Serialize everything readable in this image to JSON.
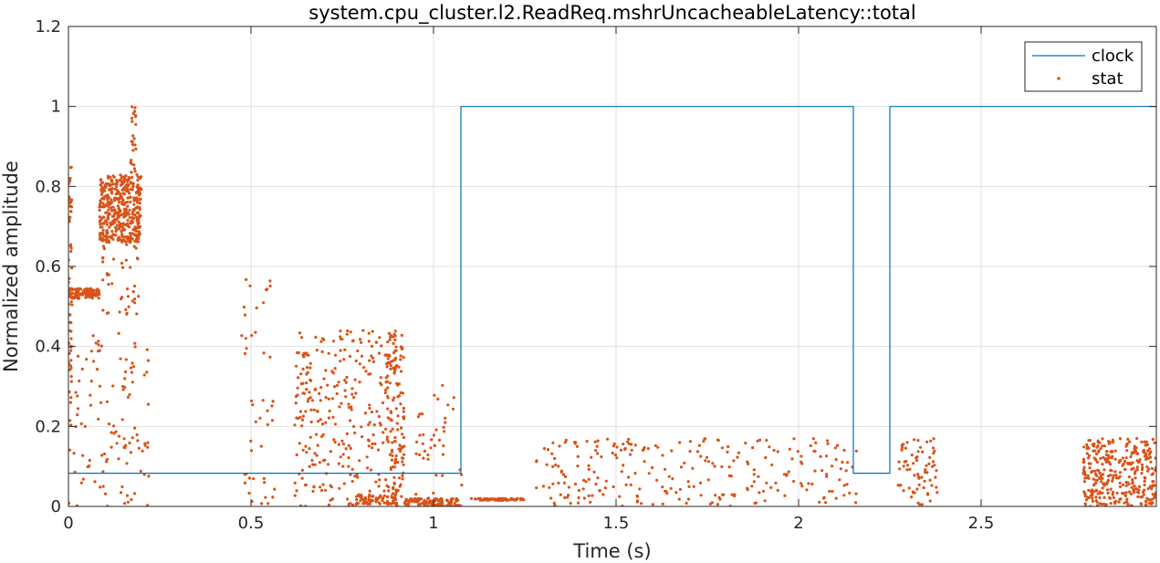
{
  "chart_data": {
    "type": "line",
    "title": "system.cpu_cluster.l2.ReadReq.mshrUncacheableLatency::total",
    "xlabel": "Time (s)",
    "ylabel": "Normalized amplitude",
    "xlim": [
      0,
      2.98
    ],
    "ylim": [
      0,
      1.2
    ],
    "xticks": [
      0,
      0.5,
      1,
      1.5,
      2,
      2.5
    ],
    "xtick_labels": [
      "0",
      "0.5",
      "1",
      "1.5",
      "2",
      "2.5"
    ],
    "yticks": [
      0,
      0.2,
      0.4,
      0.6,
      0.8,
      1,
      1.2
    ],
    "ytick_labels": [
      "0",
      "0.2",
      "0.4",
      "0.6",
      "0.8",
      "1",
      "1.2"
    ],
    "grid": true,
    "legend_position": "top-right",
    "colors": {
      "clock": "#0072BD",
      "stat": "#D95319",
      "grid": "#DFDFDF",
      "axes": "#262626"
    },
    "series": [
      {
        "name": "clock",
        "style": "line",
        "x": [
          0,
          1.075,
          1.075,
          2.15,
          2.15,
          2.25,
          2.25,
          2.98
        ],
        "y": [
          0.083,
          0.083,
          1.0,
          1.0,
          0.083,
          0.083,
          1.0,
          1.0
        ]
      },
      {
        "name": "stat",
        "style": "markers",
        "clusters": [
          {
            "x": [
              0.0,
              0.01
            ],
            "y": [
              0.2,
              0.85
            ],
            "n": 60
          },
          {
            "x": [
              0.0,
              0.085
            ],
            "y": [
              0.52,
              0.545
            ],
            "n": 110
          },
          {
            "x": [
              0.085,
              0.2
            ],
            "y": [
              0.66,
              0.83
            ],
            "n": 420
          },
          {
            "x": [
              0.09,
              0.2
            ],
            "y": [
              0.48,
              0.66
            ],
            "n": 40
          },
          {
            "x": [
              0.17,
              0.185
            ],
            "y": [
              0.83,
              1.0
            ],
            "n": 25
          },
          {
            "x": [
              0.0,
              0.22
            ],
            "y": [
              0.0,
              0.45
            ],
            "n": 110
          },
          {
            "x": [
              0.47,
              0.57
            ],
            "y": [
              0.0,
              0.57
            ],
            "n": 45
          },
          {
            "x": [
              0.62,
              0.9
            ],
            "y": [
              0.0,
              0.44
            ],
            "n": 300
          },
          {
            "x": [
              0.78,
              0.9
            ],
            "y": [
              0.005,
              0.03
            ],
            "n": 60
          },
          {
            "x": [
              0.87,
              0.92
            ],
            "y": [
              0.0,
              0.44
            ],
            "n": 110
          },
          {
            "x": [
              0.92,
              1.07
            ],
            "y": [
              0.0,
              0.02
            ],
            "n": 120
          },
          {
            "x": [
              0.95,
              1.08
            ],
            "y": [
              0.0,
              0.31
            ],
            "n": 45
          },
          {
            "x": [
              1.1,
              1.25
            ],
            "y": [
              0.015,
              0.02
            ],
            "n": 70
          },
          {
            "x": [
              1.28,
              2.16
            ],
            "y": [
              0.0,
              0.17
            ],
            "n": 260
          },
          {
            "x": [
              2.27,
              2.38
            ],
            "y": [
              0.0,
              0.17
            ],
            "n": 70
          },
          {
            "x": [
              2.78,
              2.98
            ],
            "y": [
              0.0,
              0.17
            ],
            "n": 340
          }
        ]
      }
    ]
  }
}
